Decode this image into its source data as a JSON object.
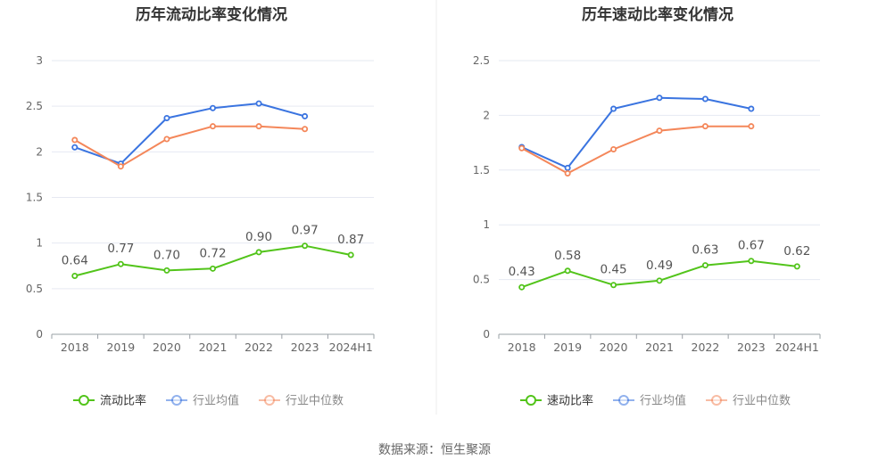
{
  "source_label": "数据来源：恒生聚源",
  "colors": {
    "green": "#52c41a",
    "blue": "#3a74e0",
    "orange": "#f4875a",
    "grid": "#e6e9f2",
    "axis": "#9aa0a6",
    "label": "#666666",
    "title": "#333333",
    "divider": "#eeeeee"
  },
  "chart_data": [
    {
      "type": "line",
      "title": "历年流动比率变化情况",
      "categories": [
        "2018",
        "2019",
        "2020",
        "2021",
        "2022",
        "2023",
        "2024H1"
      ],
      "yticks": [
        "0",
        "0.5",
        "1",
        "1.5",
        "2",
        "2.5",
        "3"
      ],
      "ylim": [
        0,
        3
      ],
      "grid": true,
      "legend_position": "bottom",
      "series": [
        {
          "name": "流动比率",
          "color": "#52c41a",
          "values": [
            0.64,
            0.77,
            0.7,
            0.72,
            0.9,
            0.97,
            0.87
          ],
          "labels": [
            "0.64",
            "0.77",
            "0.70",
            "0.72",
            "0.90",
            "0.97",
            "0.87"
          ]
        },
        {
          "name": "行业均值",
          "color": "#3a74e0",
          "values": [
            2.05,
            1.87,
            2.37,
            2.48,
            2.53,
            2.39,
            null
          ]
        },
        {
          "name": "行业中位数",
          "color": "#f4875a",
          "values": [
            2.13,
            1.84,
            2.14,
            2.28,
            2.28,
            2.25,
            null
          ]
        }
      ]
    },
    {
      "type": "line",
      "title": "历年速动比率变化情况",
      "categories": [
        "2018",
        "2019",
        "2020",
        "2021",
        "2022",
        "2023",
        "2024H1"
      ],
      "yticks": [
        "0",
        "0.5",
        "1",
        "1.5",
        "2",
        "2.5"
      ],
      "ylim": [
        0,
        2.5
      ],
      "grid": true,
      "legend_position": "bottom",
      "series": [
        {
          "name": "速动比率",
          "color": "#52c41a",
          "values": [
            0.43,
            0.58,
            0.45,
            0.49,
            0.63,
            0.67,
            0.62
          ],
          "labels": [
            "0.43",
            "0.58",
            "0.45",
            "0.49",
            "0.63",
            "0.67",
            "0.62"
          ]
        },
        {
          "name": "行业均值",
          "color": "#3a74e0",
          "values": [
            1.71,
            1.52,
            2.06,
            2.16,
            2.15,
            2.06,
            null
          ]
        },
        {
          "name": "行业中位数",
          "color": "#f4875a",
          "values": [
            1.7,
            1.47,
            1.69,
            1.86,
            1.9,
            1.9,
            null
          ]
        }
      ]
    }
  ]
}
